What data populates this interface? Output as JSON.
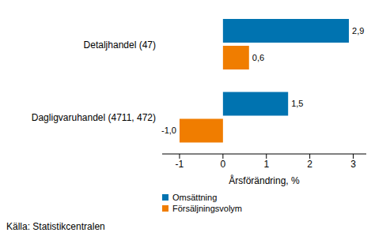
{
  "chart_data": {
    "type": "bar",
    "orientation": "horizontal",
    "categories": [
      "Detaljhandel (47)",
      "Dagligvaruhandel (4711, 472)"
    ],
    "series": [
      {
        "name": "Omsättning",
        "color": "#0073b0",
        "values": [
          2.9,
          1.5
        ],
        "value_labels": [
          "2,9",
          "1,5"
        ]
      },
      {
        "name": "Försäljningsvolym",
        "color": "#f07d00",
        "values": [
          0.6,
          -1.0
        ],
        "value_labels": [
          "0,6",
          "-1,0"
        ]
      }
    ],
    "xlim": [
      -1.4,
      3.3
    ],
    "xticks": [
      -1,
      0,
      1,
      2,
      3
    ],
    "x_label": "Årsförändring, %",
    "data_labels": true,
    "legend": "bottom left",
    "grid": false,
    "source": "Källa: Statistikcentralen"
  }
}
